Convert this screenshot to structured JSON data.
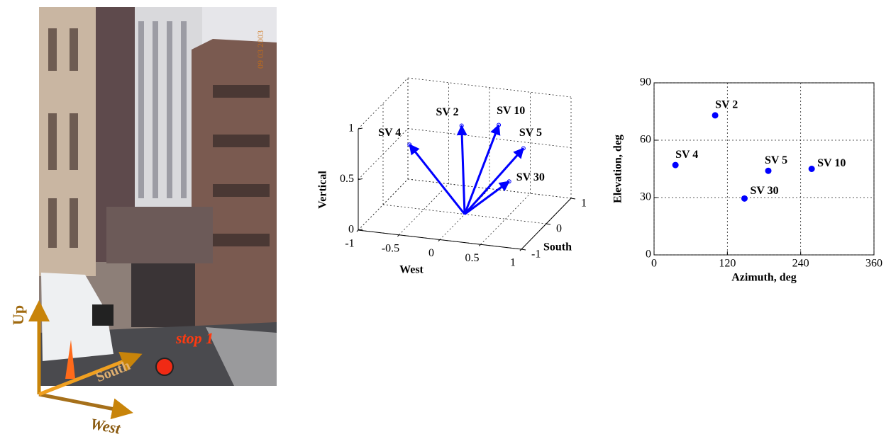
{
  "photo": {
    "date_stamp": "09 03 2003",
    "stop_label": "stop 1",
    "axis_labels": {
      "up": "Up",
      "south": "South",
      "west": "West"
    }
  },
  "chart_data": [
    {
      "type": "quiver3d",
      "xlabel": "West",
      "ylabel": "South",
      "zlabel": "Vertical",
      "xlim": [
        -1,
        1
      ],
      "xticks": [
        -1,
        -0.5,
        0,
        0.5,
        1
      ],
      "ylim": [
        -1,
        1
      ],
      "yticks": [
        -1,
        0,
        1
      ],
      "zlim": [
        0,
        1
      ],
      "zticks": [
        0,
        0.5,
        1
      ],
      "grid": true,
      "color": "#0000ff",
      "labels": [
        "SV 2",
        "SV 4",
        "SV 5",
        "SV 10",
        "SV 30"
      ],
      "x": [
        0.06,
        -0.56,
        0.69,
        0.19,
        0.67
      ],
      "y": [
        -0.32,
        -0.38,
        0.1,
        0.75,
        -0.41
      ],
      "z": [
        0.96,
        0.73,
        0.69,
        0.71,
        0.49
      ]
    },
    {
      "type": "scatter",
      "xlabel": "Azimuth, deg",
      "ylabel": "Elevation, deg",
      "xlim": [
        0,
        360
      ],
      "xticks": [
        0,
        120,
        240,
        360
      ],
      "ylim": [
        0,
        90
      ],
      "yticks": [
        0,
        30,
        60,
        90
      ],
      "grid": true,
      "color": "#0000ff",
      "labels": [
        "SV 2",
        "SV 4",
        "SV 5",
        "SV 10",
        "SV 30"
      ],
      "x": [
        100,
        35,
        187,
        258,
        148
      ],
      "y": [
        73,
        47,
        44,
        45,
        29.5
      ]
    }
  ]
}
